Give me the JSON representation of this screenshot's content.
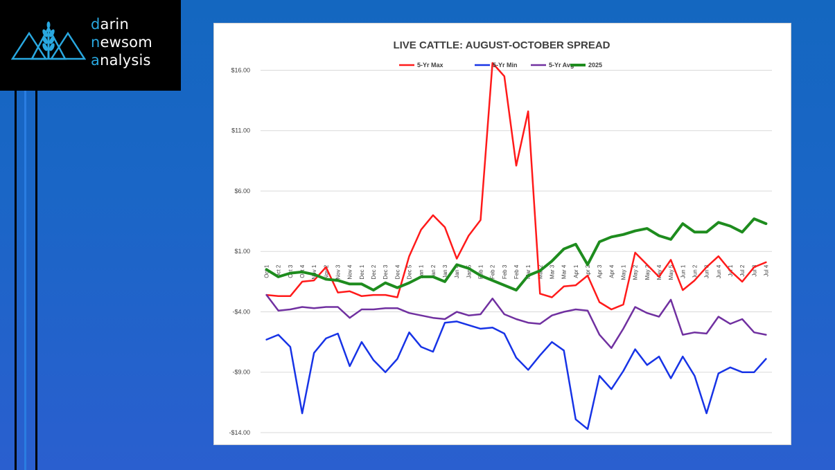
{
  "brand": {
    "lines": [
      {
        "hl": "d",
        "rest": "arin"
      },
      {
        "hl": "n",
        "rest": "ewsom"
      },
      {
        "hl": "a",
        "rest": "nalysis"
      }
    ],
    "colors": {
      "highlight": "#29a8e0",
      "text": "#ffffff",
      "background": "#000000"
    }
  },
  "chart_data": {
    "type": "line",
    "title": "LIVE CATTLE: AUGUST-OCTOBER SPREAD",
    "xlabel": "",
    "ylabel": "",
    "ylim": [
      -14,
      17
    ],
    "yticks": [
      16,
      11,
      6,
      1,
      -4,
      -9,
      -14
    ],
    "ytick_labels": [
      "$16.00",
      "$11.00",
      "$6.00",
      "$1.00",
      "-$4.00",
      "-$9.00",
      "-$14.00"
    ],
    "grid": true,
    "legend": "top",
    "categories": [
      "Oct 1",
      "Oct 2",
      "Oct 3",
      "Oct 4",
      "Nov 1",
      "Nov 2",
      "Nov 3",
      "Nov 4",
      "Dec 1",
      "Dec 2",
      "Dec 3",
      "Dec 4",
      "Dec 5",
      "Jan 1",
      "Jan 2",
      "Jan 3",
      "Jan 4",
      "Jan 5",
      "Feb 1",
      "Feb 2",
      "Feb 3",
      "Feb 4",
      "Mar 1",
      "Mar 2",
      "Mar 3",
      "Mar 4",
      "Apr 1",
      "Apr 2",
      "Apr 3",
      "Apr 4",
      "May 1",
      "May 2",
      "May 3",
      "May 4",
      "May 5",
      "Jun 1",
      "Jun 2",
      "Jun 3",
      "Jun 4",
      "Jul 1",
      "Jul 2",
      "Jul 3",
      "Jul 4"
    ],
    "tick_labels": [
      "Oct 1",
      "Oct 2",
      "Oct 3",
      "Oct 4",
      "Nov 1",
      "Nov 2",
      "Nov 3",
      "Nov 4",
      "Dec 1",
      "Dec 2",
      "Dec 3",
      "Dec 4",
      "Dec 5",
      "Jan 1",
      "Jan 2",
      "Jan 3",
      "Jan 4",
      "Jan 5",
      "Feb 1",
      "Feb 2",
      "Feb 3",
      "Feb 4",
      "Mar 1",
      "Mar 2",
      "Mar 3",
      "Mar 4",
      "Apr 1",
      "Apr 2",
      "Apr 3",
      "Apr 4",
      "May 1",
      "May 2",
      "May 3",
      "May 4",
      "May 5",
      "Jun 1",
      "Jun 2",
      "Jun 3",
      "Jun 4",
      "Jul 1",
      "Jul 2",
      "Jul 3",
      "Jul 4"
    ],
    "series": [
      {
        "name": "5-Yr Max",
        "color": "#ff1a1a",
        "values": [
          -2.6,
          -2.7,
          -2.7,
          -1.5,
          -1.4,
          -0.3,
          -2.4,
          -2.3,
          -2.7,
          -2.6,
          -2.6,
          -2.8,
          0.6,
          2.8,
          4.0,
          3.0,
          0.4,
          2.3,
          3.6,
          16.6,
          15.5,
          8.1,
          12.6,
          -2.5,
          -2.8,
          -1.9,
          -1.8,
          -1.0,
          -3.2,
          -3.8,
          -3.4,
          0.9,
          -0.1,
          -1.1,
          0.3,
          -2.2,
          -1.4,
          -0.3,
          0.6,
          -0.6,
          -1.5,
          -0.3,
          0.1
        ]
      },
      {
        "name": "5-Yr Min",
        "color": "#1733e6",
        "values": [
          -6.3,
          -5.9,
          -6.9,
          -12.4,
          -7.4,
          -6.2,
          -5.8,
          -8.5,
          -6.5,
          -8.0,
          -9.0,
          -7.9,
          -5.7,
          -6.9,
          -7.3,
          -4.9,
          -4.8,
          -5.1,
          -5.4,
          -5.3,
          -5.8,
          -7.8,
          -8.8,
          -7.6,
          -6.5,
          -7.2,
          -12.9,
          -13.7,
          -9.3,
          -10.4,
          -8.9,
          -7.1,
          -8.4,
          -7.7,
          -9.5,
          -7.7,
          -9.3,
          -12.4,
          -9.1,
          -8.6,
          -9.0,
          -9.0,
          -7.9
        ]
      },
      {
        "name": "5-Yr Avg",
        "color": "#7030a0",
        "values": [
          -2.6,
          -3.9,
          -3.8,
          -3.6,
          -3.7,
          -3.6,
          -3.6,
          -4.5,
          -3.8,
          -3.8,
          -3.7,
          -3.7,
          -4.1,
          -4.3,
          -4.5,
          -4.6,
          -4.0,
          -4.3,
          -4.2,
          -2.9,
          -4.2,
          -4.6,
          -4.9,
          -5.0,
          -4.3,
          -4.0,
          -3.8,
          -3.9,
          -5.9,
          -7.0,
          -5.4,
          -3.6,
          -4.1,
          -4.4,
          -3.0,
          -5.9,
          -5.7,
          -5.8,
          -4.4,
          -5.0,
          -4.6,
          -5.7,
          -5.9
        ]
      },
      {
        "name": "2025",
        "color": "#1e8c1e",
        "values": [
          -0.5,
          -1.1,
          -0.8,
          -0.7,
          -0.9,
          -1.3,
          -1.4,
          -1.7,
          -1.7,
          -2.2,
          -1.6,
          -2.0,
          -1.6,
          -1.1,
          -1.1,
          -1.5,
          -0.1,
          -0.4,
          -1.0,
          -1.4,
          -1.8,
          -2.2,
          -1.0,
          -0.6,
          0.2,
          1.2,
          1.6,
          -0.1,
          1.8,
          2.2,
          2.4,
          2.7,
          2.9,
          2.3,
          2.0,
          3.3,
          2.6,
          2.6,
          3.4,
          3.1,
          2.6,
          3.7,
          3.3
        ]
      }
    ]
  }
}
